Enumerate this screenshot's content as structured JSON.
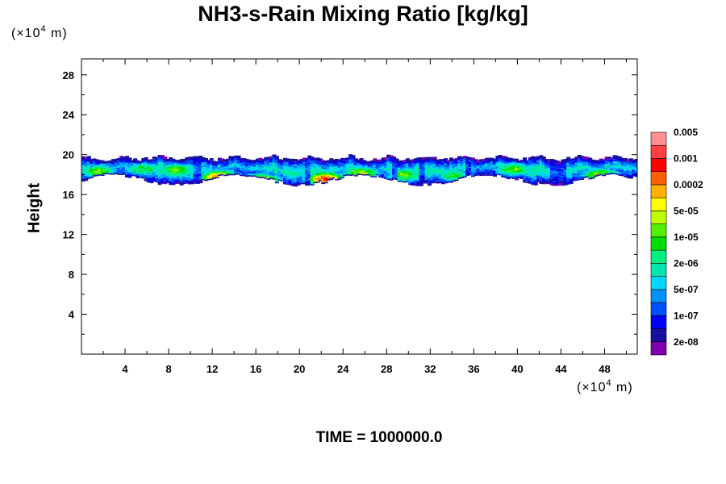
{
  "chart_data": {
    "type": "heatmap",
    "title": "NH3-s-Rain Mixing Ratio [kg/kg]",
    "ylabel": "Height",
    "xlabel": "",
    "unit_prefix": "(×10",
    "unit_exp": "4",
    "unit_suffix": " m)",
    "x_ticks": [
      "4",
      "8",
      "12",
      "16",
      "20",
      "24",
      "28",
      "32",
      "36",
      "40",
      "44",
      "48"
    ],
    "y_ticks": [
      "4",
      "8",
      "12",
      "16",
      "20",
      "24",
      "28"
    ],
    "xlim": [
      0,
      51
    ],
    "ylim": [
      0,
      29.6
    ],
    "time_label": "TIME = 1000000.0",
    "colorbar": {
      "colors": [
        "#8000b0",
        "#1a10a0",
        "#0000ff",
        "#0050ff",
        "#0090ff",
        "#00d8ff",
        "#00e8b0",
        "#00f080",
        "#00e000",
        "#50f000",
        "#c0ff00",
        "#ffff00",
        "#ffb000",
        "#ff6000",
        "#ff0000",
        "#ff4040",
        "#ff9090"
      ],
      "labels": [
        "2e-08",
        "1e-07",
        "5e-07",
        "2e-06",
        "1e-05",
        "5e-05",
        "0.0002",
        "0.001",
        "0.005"
      ]
    },
    "cloud_band_height_range": [
      16.5,
      20
    ],
    "cloud_cores": [
      {
        "x": 1.5,
        "z": 18.4,
        "level": 9
      },
      {
        "x": 5.5,
        "z": 18.6,
        "level": 8
      },
      {
        "x": 8.5,
        "z": 18.5,
        "level": 9
      },
      {
        "x": 12.5,
        "z": 17.8,
        "level": 13
      },
      {
        "x": 16.3,
        "z": 17.4,
        "level": 13
      },
      {
        "x": 22.3,
        "z": 17.6,
        "level": 14
      },
      {
        "x": 25.5,
        "z": 18.2,
        "level": 10
      },
      {
        "x": 29.5,
        "z": 18.0,
        "level": 9
      },
      {
        "x": 34.0,
        "z": 18.0,
        "level": 8
      },
      {
        "x": 39.5,
        "z": 18.6,
        "level": 9
      },
      {
        "x": 47.5,
        "z": 18.0,
        "level": 10
      }
    ]
  }
}
